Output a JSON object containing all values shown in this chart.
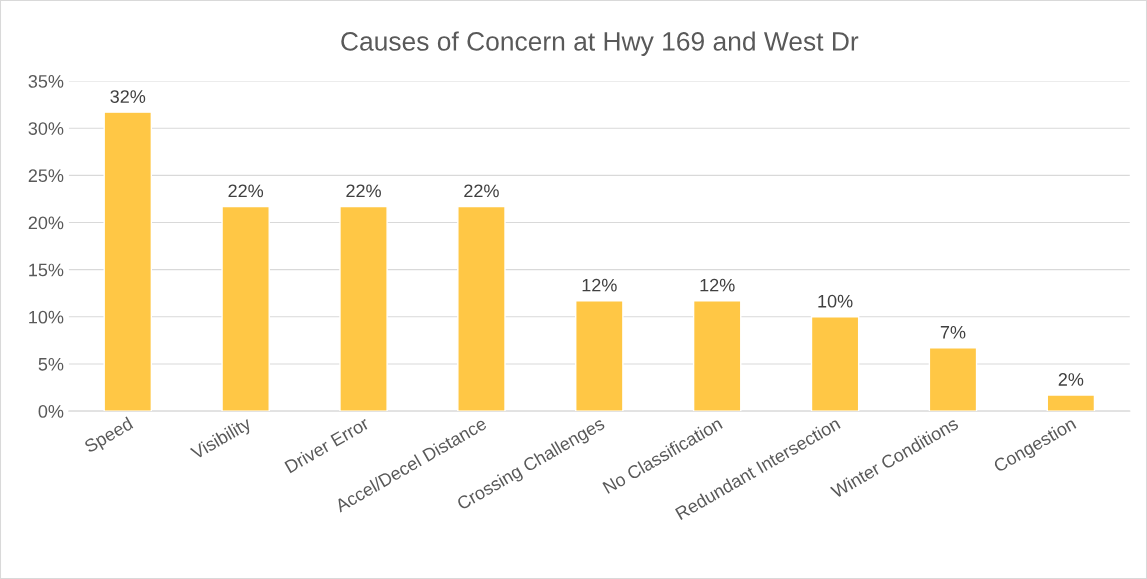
{
  "chart_data": {
    "type": "bar",
    "title": "Causes of Concern at Hwy 169 and West Dr",
    "categories": [
      "Speed",
      "Visibility",
      "Driver Error",
      "Accel/Decel Distance",
      "Crossing Challenges",
      "No Classification",
      "Redundant Intersection",
      "Winter Conditions",
      "Congestion"
    ],
    "values": [
      31.7,
      21.7,
      21.7,
      21.7,
      11.7,
      11.7,
      10,
      6.7,
      1.7
    ],
    "value_labels": [
      "32%",
      "22%",
      "22%",
      "22%",
      "12%",
      "12%",
      "10%",
      "7%",
      "2%"
    ],
    "color": "#ffc745",
    "ylim": [
      0,
      35
    ],
    "yticks": [
      {
        "value": 0,
        "label": "0%"
      },
      {
        "value": 5,
        "label": "5%"
      },
      {
        "value": 10,
        "label": "10%"
      },
      {
        "value": 15,
        "label": "15%"
      },
      {
        "value": 20,
        "label": "20%"
      },
      {
        "value": 25,
        "label": "25%"
      },
      {
        "value": 30,
        "label": "30%"
      },
      {
        "value": 35,
        "label": "35%"
      }
    ],
    "grid": "y",
    "legend": false
  }
}
